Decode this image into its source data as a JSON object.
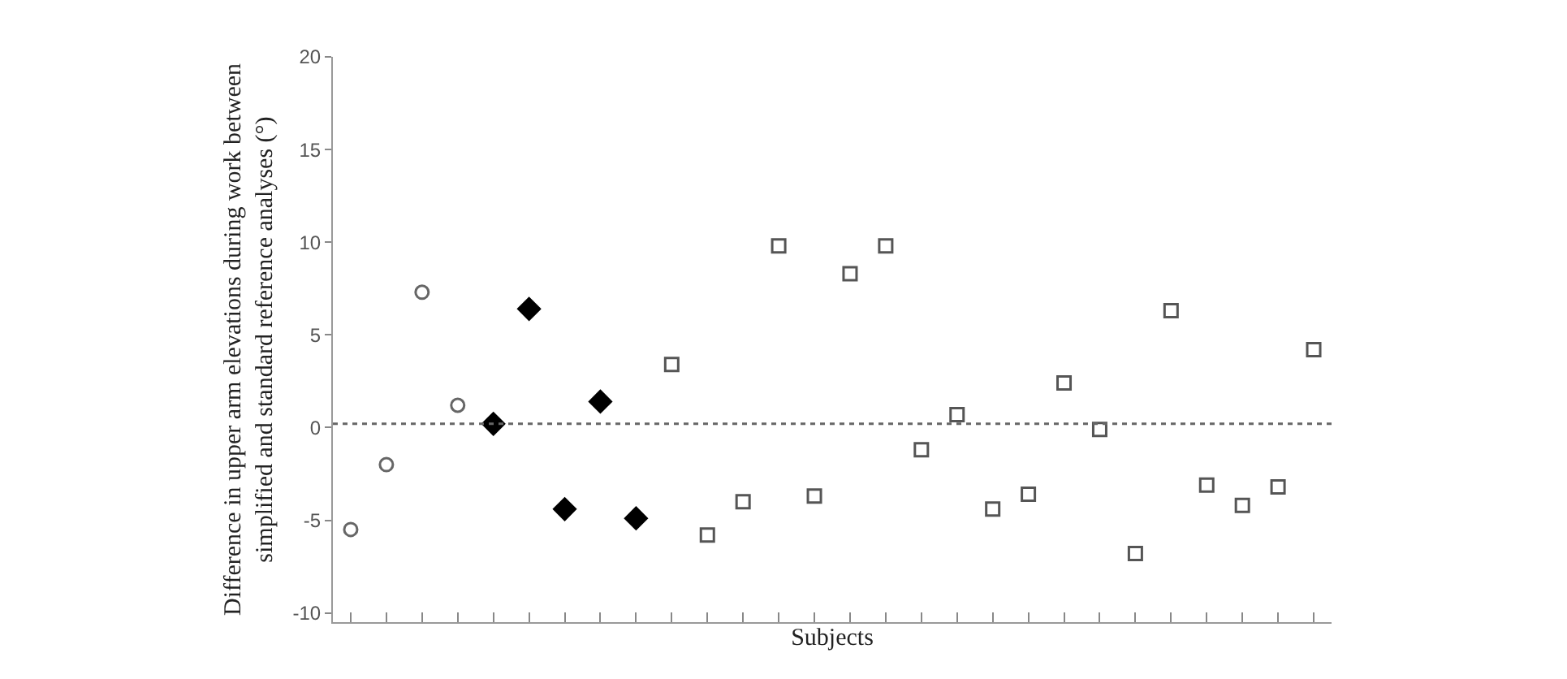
{
  "chart_data": {
    "type": "scatter",
    "xlabel": "Subjects",
    "ylabel": "Difference in upper arm elevations during work between\nsimplified and standard reference analyses (°)",
    "categories": [
      null,
      null,
      null,
      null,
      null,
      null,
      null,
      null,
      null,
      null,
      null,
      null,
      null,
      null,
      null,
      null,
      null,
      null,
      null,
      null,
      null,
      null,
      null,
      null,
      null,
      null,
      null,
      null
    ],
    "series": [
      {
        "color": "#666666",
        "marker": "circle",
        "values": [
          -5.5,
          -2.0,
          7.3,
          1.2,
          null,
          null,
          null,
          null,
          null,
          null,
          null,
          null,
          null,
          null,
          null,
          null,
          null,
          null,
          null,
          null,
          null,
          null,
          null,
          null,
          null,
          null,
          null,
          null
        ]
      },
      {
        "color": "#000000",
        "marker": "diamond",
        "values": [
          null,
          null,
          null,
          null,
          0.2,
          6.4,
          -4.4,
          1.4,
          -4.9,
          null,
          null,
          null,
          null,
          null,
          null,
          null,
          null,
          null,
          null,
          null,
          null,
          null,
          null,
          null,
          null,
          null,
          null,
          null
        ]
      },
      {
        "color": "#555555",
        "marker": "square",
        "values": [
          null,
          null,
          null,
          null,
          null,
          null,
          null,
          null,
          null,
          3.4,
          -5.8,
          -4.0,
          9.8,
          -3.7,
          8.3,
          9.8,
          -1.2,
          0.7,
          -4.4,
          -3.6,
          2.4,
          -0.1,
          -6.8,
          6.3,
          -3.1,
          -4.2,
          -3.2,
          4.2
        ]
      }
    ],
    "ylim": [
      -10.5,
      20
    ],
    "yticks": [
      -10,
      -5,
      0,
      5,
      10,
      15,
      20
    ],
    "ref_lines": [
      {
        "axis": "y",
        "value": 0.2,
        "color": "#666666",
        "line_style": "dotted"
      }
    ],
    "grid": false
  }
}
